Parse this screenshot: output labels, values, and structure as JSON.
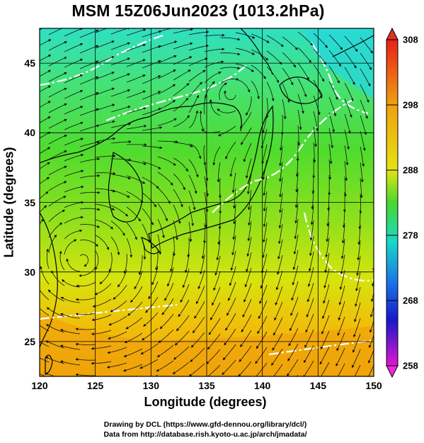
{
  "title": "MSM 15Z06Jun2023 (1013.2hPa)",
  "map": {
    "xlabel": "Longitude (degrees)",
    "ylabel": "Latitude  (degrees)",
    "lon_range": [
      120,
      150
    ],
    "lat_range": [
      22.5,
      47.5
    ],
    "x_ticks": [
      "120",
      "125",
      "130",
      "135",
      "140",
      "145",
      "150"
    ],
    "y_ticks": [
      "25",
      "30",
      "35",
      "40",
      "45"
    ],
    "field": "temperature (K) with streamlines",
    "colors": {
      "contour": "#ffffff",
      "coast": "#000000",
      "streamline": "#111111"
    }
  },
  "colorbar": {
    "ticks": [
      "308",
      "298",
      "288",
      "278",
      "268",
      "258"
    ],
    "min": 258,
    "max": 308
  },
  "credits": {
    "line1": "Drawing by DCL (https://www.gfd-dennou.org/library/dcl/)",
    "line2": "Data from http://database.rish.kyoto-u.ac.jp/arch/jmadata/"
  }
}
